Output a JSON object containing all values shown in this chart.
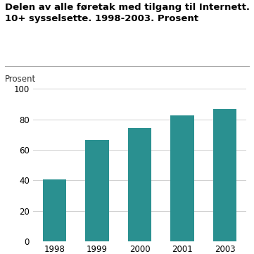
{
  "title_line1": "Delen av alle føretak med tilgang til Internett.",
  "title_line2": "10+ sysselsette. 1998-2003. Prosent",
  "ylabel": "Prosent",
  "categories": [
    "1998",
    "1999",
    "2000",
    "2001",
    "2003"
  ],
  "values": [
    40.5,
    66.5,
    74.5,
    82.5,
    87.0
  ],
  "bar_color": "#2a9090",
  "ylim": [
    0,
    100
  ],
  "yticks": [
    0,
    20,
    40,
    60,
    80,
    100
  ],
  "background_color": "#ffffff",
  "title_fontsize": 9.5,
  "ylabel_fontsize": 8.5,
  "tick_fontsize": 8.5,
  "bar_width": 0.55,
  "grid_color": "#d0d0d0",
  "separator_color": "#aaaaaa"
}
